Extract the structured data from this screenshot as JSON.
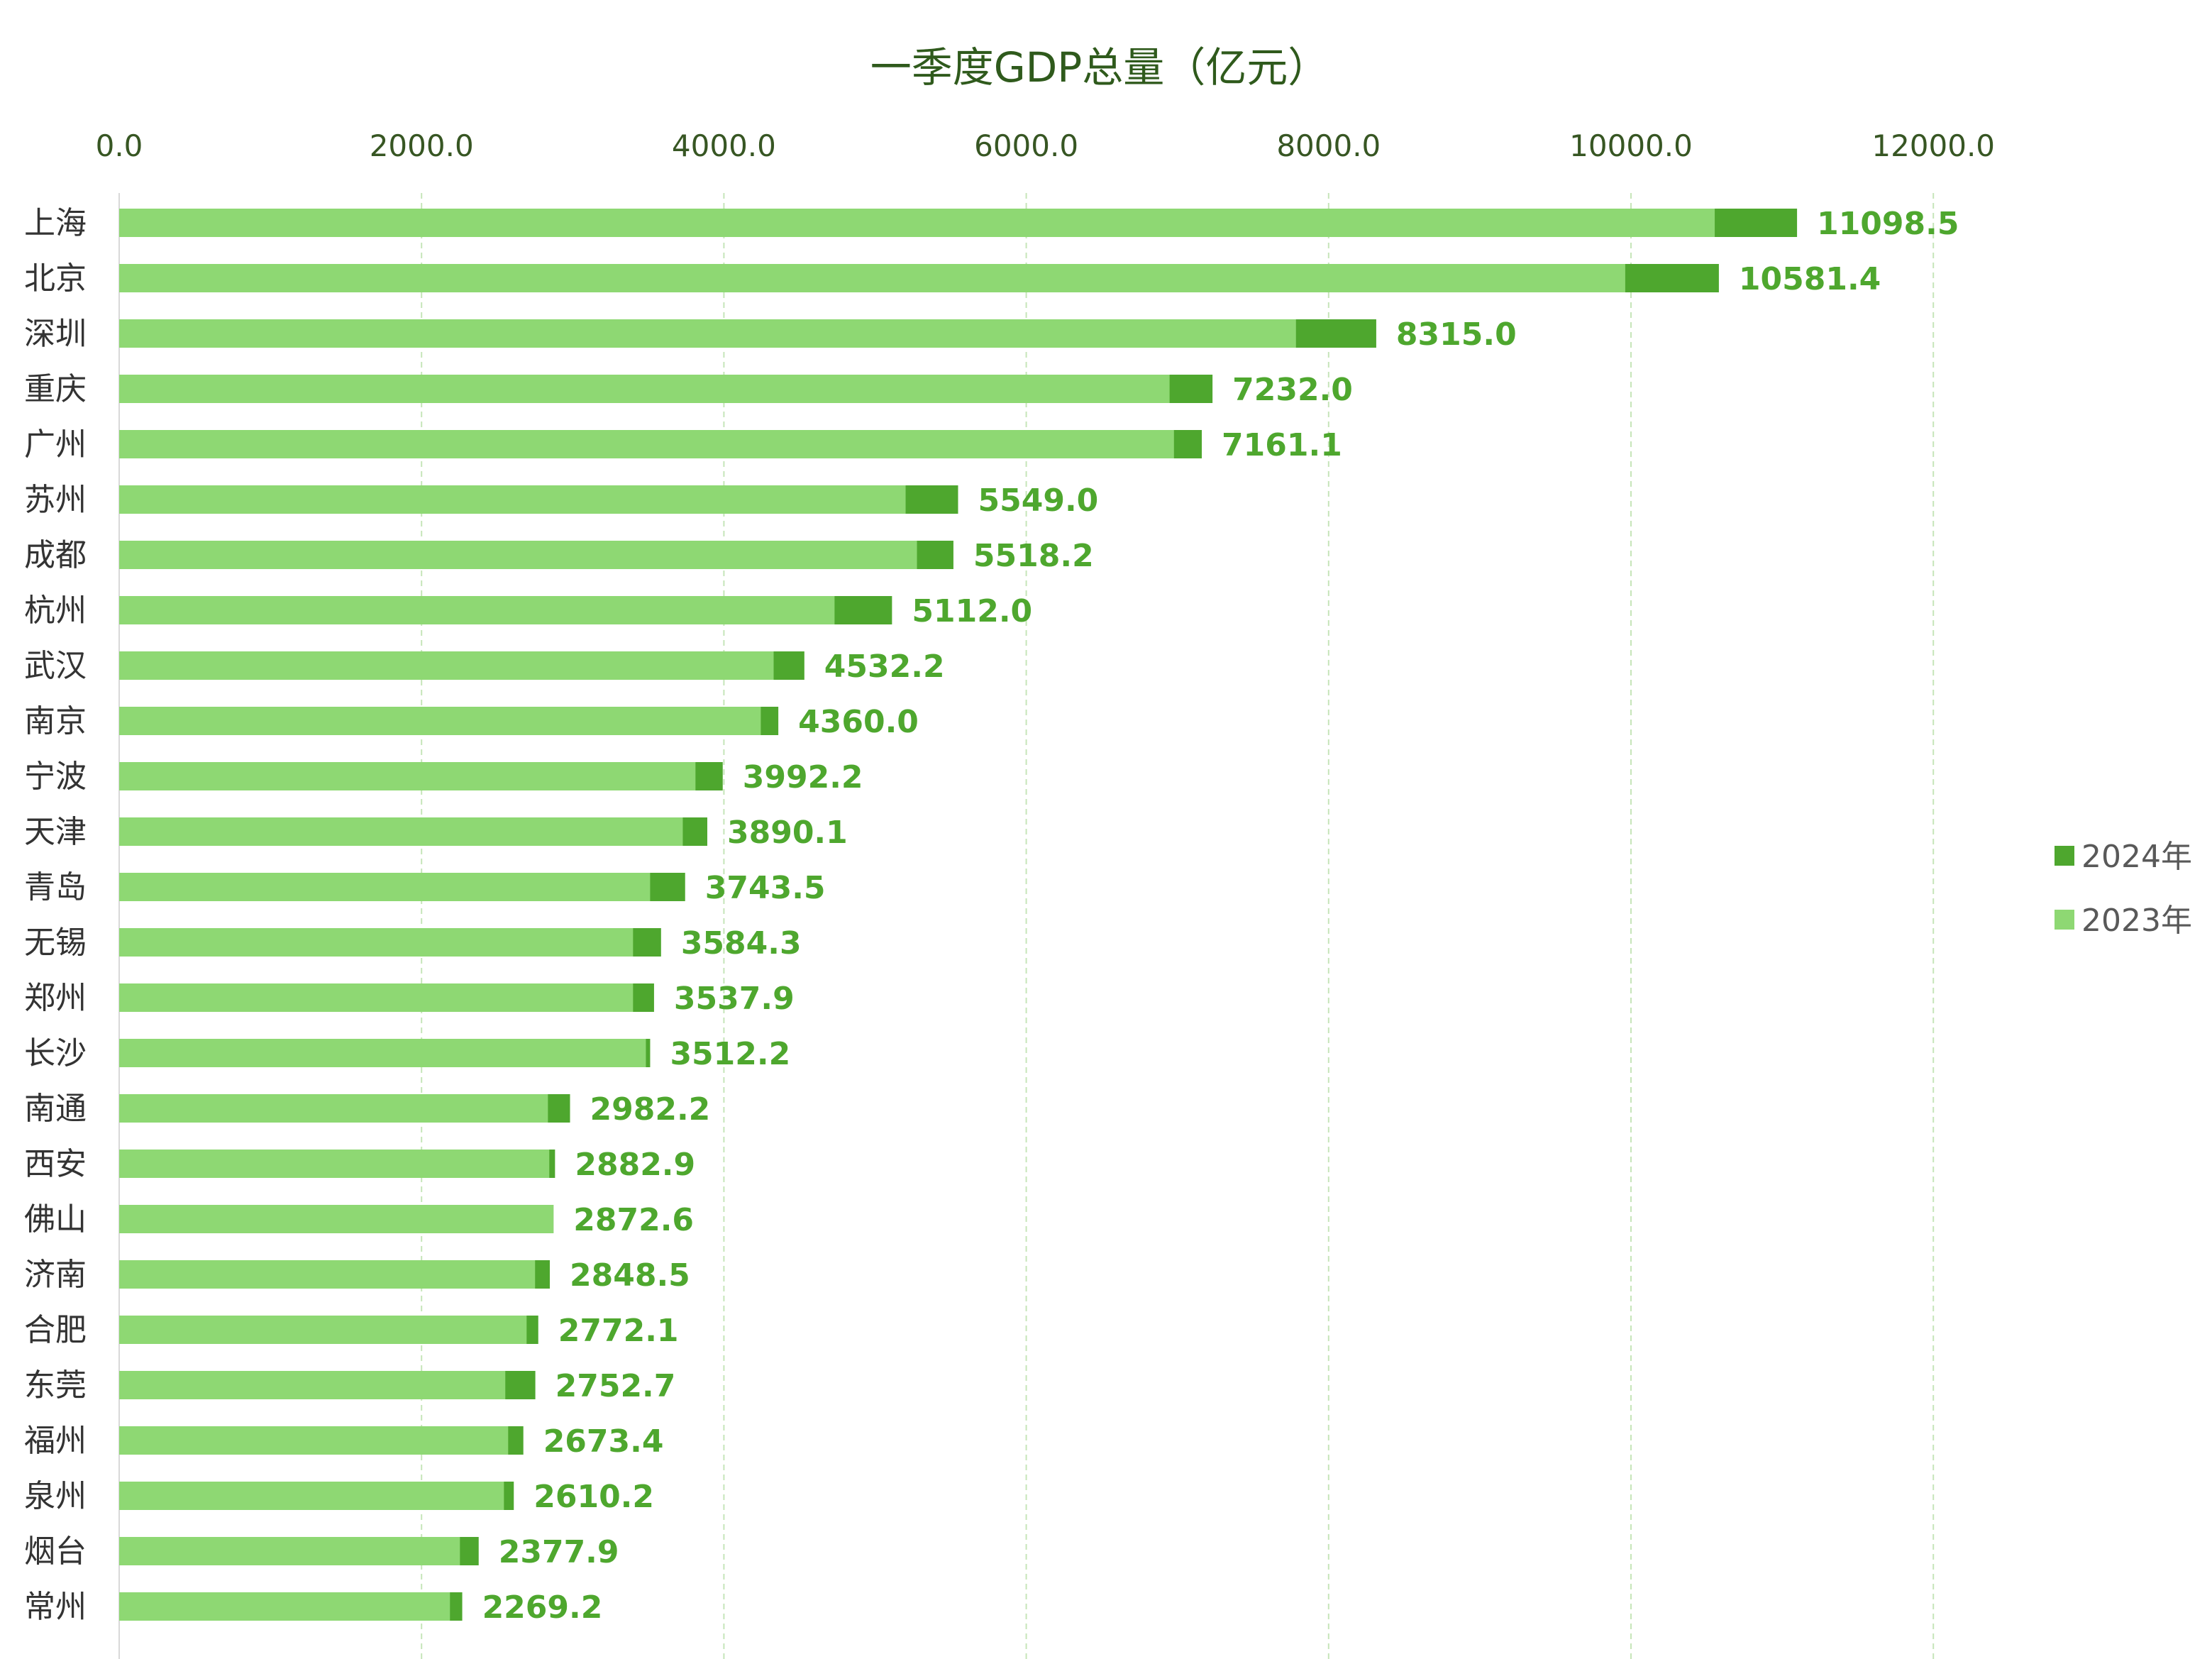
{
  "chart_data": {
    "type": "bar",
    "orientation": "horizontal",
    "title": "一季度GDP总量（亿元）",
    "xlim": [
      0,
      12000
    ],
    "x_ticks": [
      "0.0",
      "2000.0",
      "4000.0",
      "6000.0",
      "8000.0",
      "10000.0",
      "12000.0"
    ],
    "grid": "vertical dashed",
    "legend_position": "right",
    "categories": [
      "上海",
      "北京",
      "深圳",
      "重庆",
      "广州",
      "苏州",
      "成都",
      "杭州",
      "武汉",
      "南京",
      "宁波",
      "天津",
      "青岛",
      "无锡",
      "郑州",
      "长沙",
      "南通",
      "西安",
      "佛山",
      "济南",
      "合肥",
      "东莞",
      "福州",
      "泉州",
      "烟台",
      "常州"
    ],
    "series": [
      {
        "name": "2024年",
        "color": "#4ea72e",
        "values": [
          11098.5,
          10581.4,
          8315.0,
          7232.0,
          7161.1,
          5549.0,
          5518.2,
          5112.0,
          4532.2,
          4360.0,
          3992.2,
          3890.1,
          3743.5,
          3584.3,
          3537.9,
          3512.2,
          2982.2,
          2882.9,
          2872.6,
          2848.5,
          2772.1,
          2752.7,
          2673.4,
          2610.2,
          2377.9,
          2269.2
        ]
      },
      {
        "name": "2023年",
        "color": "#8ed873",
        "values": [
          10554,
          9962,
          7784,
          6948,
          6977,
          5202,
          5277,
          4732,
          4329,
          4244,
          3812,
          3728,
          3512,
          3399,
          3399,
          3484,
          2836,
          2845,
          2873,
          2751,
          2695,
          2554,
          2573,
          2545,
          2254,
          2188
        ]
      }
    ],
    "data_labels": [
      "11098.5",
      "10581.4",
      "8315.0",
      "7232.0",
      "7161.1",
      "5549.0",
      "5518.2",
      "5112.0",
      "4532.2",
      "4360.0",
      "3992.2",
      "3890.1",
      "3743.5",
      "3584.3",
      "3537.9",
      "3512.2",
      "2982.2",
      "2882.9",
      "2872.6",
      "2848.5",
      "2772.1",
      "2752.7",
      "2673.4",
      "2610.2",
      "2377.9",
      "2269.2"
    ]
  }
}
